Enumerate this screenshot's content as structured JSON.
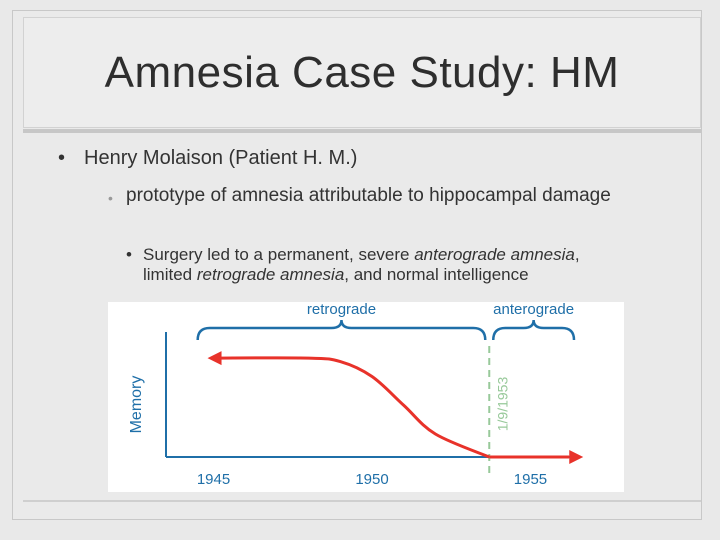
{
  "slide": {
    "title": "Amnesia Case Study: HM",
    "bullet1": "Henry Molaison (Patient H. M.)",
    "bullet2": "prototype of amnesia attributable to hippocampal damage",
    "bullet3": {
      "p1": "Surgery led to a permanent, severe ",
      "i1": "anterograde amnesia",
      "p2": ", limited ",
      "i2": "retrograde amnesia",
      "p3": ", and normal intelligence"
    },
    "bullet_symbol": "•"
  },
  "colors": {
    "retrograde_curve": "#e8322a",
    "brace": "#1f6fa8",
    "dashed_line": "#98c99a",
    "axis": "#1f6fa8"
  },
  "chart_data": {
    "type": "line",
    "ylabel": "Memory",
    "xlabel": "",
    "x_ticks": [
      "1945",
      "1950",
      "1955"
    ],
    "xlim": [
      1943.5,
      1956.5
    ],
    "ylim": [
      0,
      1
    ],
    "series": [
      {
        "x": [
          1945,
          1948,
          1949,
          1950,
          1951,
          1952,
          1953.7
        ],
        "y": [
          0.86,
          0.86,
          0.83,
          0.7,
          0.45,
          0.2,
          0.0
        ]
      }
    ],
    "surgery_date": {
      "x": 1953.7,
      "label": "1/9/1953"
    },
    "annotations": [
      {
        "text": "retrograde",
        "from": 1944.5,
        "to": 1953.7
      },
      {
        "text": "anterograde",
        "from": 1953.7,
        "to": 1956.5
      }
    ]
  }
}
